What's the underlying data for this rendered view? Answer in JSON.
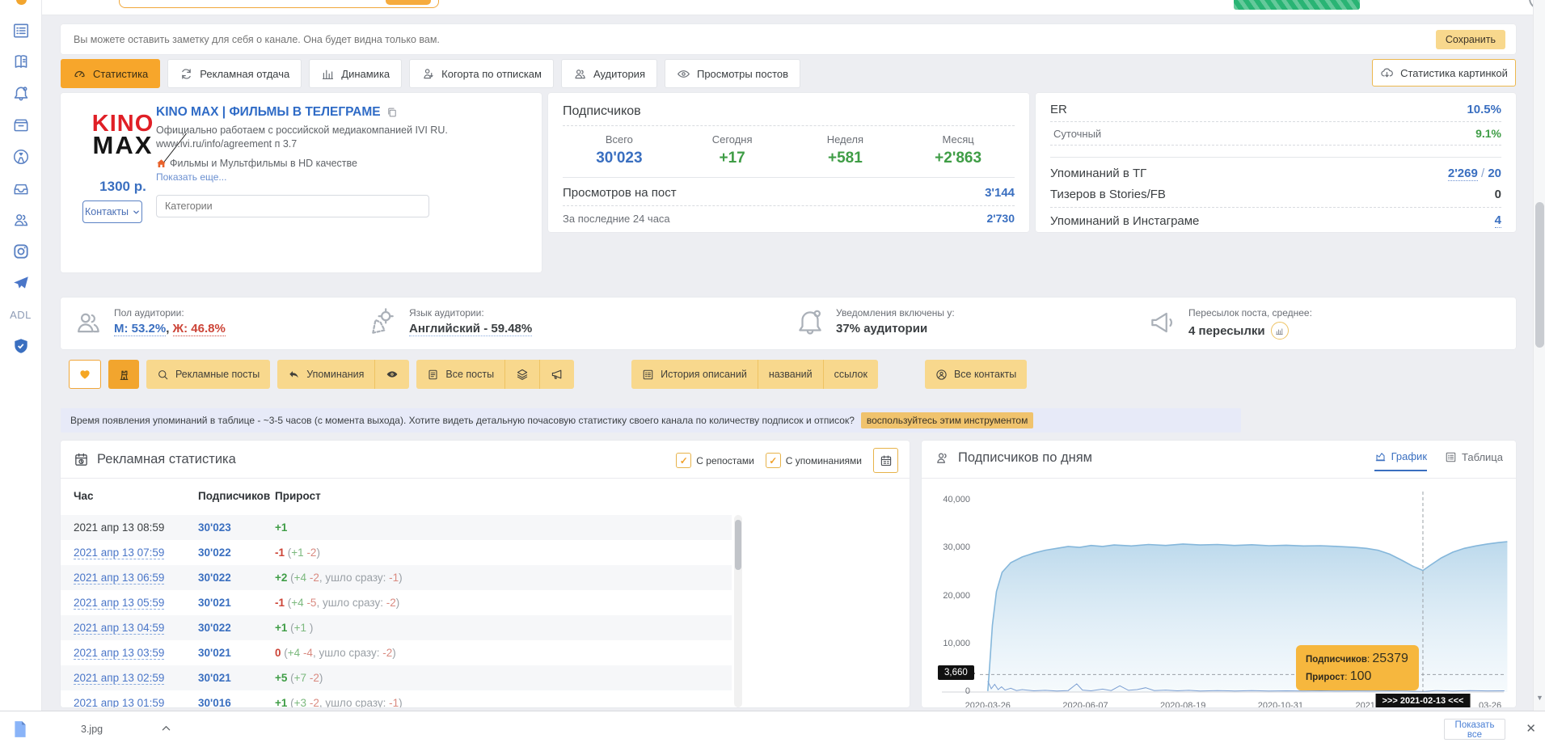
{
  "topbar": {
    "note_placeholder": "Вы можете оставить заметку для себя о канале. Она будет видна только вам.",
    "save_label": "Сохранить"
  },
  "sidebar": {
    "adl_label": "ADL"
  },
  "tabs": [
    {
      "label": "Статистика",
      "active": true
    },
    {
      "label": "Рекламная отдача",
      "active": false
    },
    {
      "label": "Динамика",
      "active": false
    },
    {
      "label": "Когорта по отпискам",
      "active": false
    },
    {
      "label": "Аудитория",
      "active": false
    },
    {
      "label": "Просмотры постов",
      "active": false
    }
  ],
  "stats_image_button": "Статистика картинкой",
  "channel": {
    "logo_line1": "KINO",
    "logo_line2": "MAX",
    "title": "KINO MAX | ФИЛЬМЫ В ТЕЛЕГРАМЕ",
    "desc1": "Официально работаем с российской медиакомпанией IVI RU.",
    "desc2": "www.ivi.ru/info/agreement п 3.7",
    "desc3": "Фильмы и Мультфильмы в HD качестве",
    "show_more": "Показать еще...",
    "price": "1300 р.",
    "contacts_label": "Контакты",
    "categories_placeholder": "Категории"
  },
  "subscribers": {
    "title": "Подписчиков",
    "cols": [
      {
        "label": "Всего",
        "value": "30'023",
        "color": "blue"
      },
      {
        "label": "Сегодня",
        "value": "+17",
        "color": "green"
      },
      {
        "label": "Неделя",
        "value": "+581",
        "color": "green"
      },
      {
        "label": "Месяц",
        "value": "+2'863",
        "color": "green"
      }
    ],
    "views_label": "Просмотров на пост",
    "views_value": "3'144",
    "views24_label": "За последние 24 часа",
    "views24_value": "2'730"
  },
  "er": {
    "er_label": "ER",
    "er_value": "10.5%",
    "daily_label": "Суточный",
    "daily_value": "9.1%",
    "tg_label": "Упоминаний в ТГ",
    "tg_value": "2'269",
    "tg_slash": " / ",
    "tg_value2": "20",
    "stories_label": "Тизеров в Stories/FB",
    "stories_value": "0",
    "insta_label": "Упоминаний в Инстаграме",
    "insta_value": "4"
  },
  "audience": {
    "gender_label": "Пол аудитории:",
    "gender_m": "М: 53.2%",
    "gender_sep": ", ",
    "gender_f": "Ж: 46.8%",
    "lang_label": "Язык аудитории:",
    "lang_value": "Английский - 59.48%",
    "notif_label": "Уведомления включены у:",
    "notif_value": "37% аудитории",
    "forward_label": "Пересылок поста, среднее:",
    "forward_value": "4 пересылки"
  },
  "filters": {
    "ad_posts": "Рекламные посты",
    "mentions": "Упоминания",
    "all_posts": "Все посты",
    "history_desc": "История описаний",
    "history_names": "названий",
    "history_links": "ссылок",
    "all_contacts": "Все контакты"
  },
  "banner": {
    "text": "Время появления упоминаний в таблице - ~3-5 часов (с момента выхода). Хотите видеть детальную почасовую статистику своего канала по количеству подписок и отписок?",
    "link": "воспользуйтесь этим инструментом"
  },
  "ad_stats": {
    "title": "Рекламная статистика",
    "checkbox_reposts": "С репостами",
    "checkbox_mentions": "С упоминаниями",
    "check_glyph": "✓",
    "headers": [
      "Час",
      "Подписчиков",
      "Прирост"
    ],
    "rows": [
      {
        "time": "2021 апр 13 08:59",
        "link": false,
        "subs": "30'023",
        "growth": [
          [
            "+1",
            "gb"
          ]
        ]
      },
      {
        "time": "2021 апр 13 07:59",
        "link": true,
        "subs": "30'022",
        "growth": [
          [
            "-1",
            "rb"
          ],
          [
            " (",
            "gy"
          ],
          [
            "+1",
            "g"
          ],
          [
            " ",
            "gy"
          ],
          [
            "-2",
            "r"
          ],
          [
            ")",
            "gy"
          ]
        ]
      },
      {
        "time": "2021 апр 13 06:59",
        "link": true,
        "subs": "30'022",
        "growth": [
          [
            "+2",
            "gb"
          ],
          [
            " (",
            "gy"
          ],
          [
            "+4",
            "g"
          ],
          [
            " ",
            "gy"
          ],
          [
            "-2",
            "r"
          ],
          [
            ", ушло сразу: ",
            "gy"
          ],
          [
            "-1",
            "r"
          ],
          [
            ")",
            "gy"
          ]
        ]
      },
      {
        "time": "2021 апр 13 05:59",
        "link": true,
        "subs": "30'021",
        "growth": [
          [
            "-1",
            "rb"
          ],
          [
            " (",
            "gy"
          ],
          [
            "+4",
            "g"
          ],
          [
            " ",
            "gy"
          ],
          [
            "-5",
            "r"
          ],
          [
            ", ушло сразу: ",
            "gy"
          ],
          [
            "-2",
            "r"
          ],
          [
            ")",
            "gy"
          ]
        ]
      },
      {
        "time": "2021 апр 13 04:59",
        "link": true,
        "subs": "30'022",
        "growth": [
          [
            "+1",
            "gb"
          ],
          [
            " (",
            "gy"
          ],
          [
            "+1",
            "g"
          ],
          [
            " )",
            "gy"
          ]
        ]
      },
      {
        "time": "2021 апр 13 03:59",
        "link": true,
        "subs": "30'021",
        "growth": [
          [
            "0",
            "rb"
          ],
          [
            " (",
            "gy"
          ],
          [
            "+4",
            "g"
          ],
          [
            " ",
            "gy"
          ],
          [
            "-4",
            "r"
          ],
          [
            ", ушло сразу: ",
            "gy"
          ],
          [
            "-2",
            "r"
          ],
          [
            ")",
            "gy"
          ]
        ]
      },
      {
        "time": "2021 апр 13 02:59",
        "link": true,
        "subs": "30'021",
        "growth": [
          [
            "+5",
            "gb"
          ],
          [
            " (",
            "gy"
          ],
          [
            "+7",
            "g"
          ],
          [
            " ",
            "gy"
          ],
          [
            "-2",
            "r"
          ],
          [
            ")",
            "gy"
          ]
        ]
      },
      {
        "time": "2021 апр 13 01:59",
        "link": true,
        "subs": "30'016",
        "growth": [
          [
            "+1",
            "gb"
          ],
          [
            " (",
            "gy"
          ],
          [
            "+3",
            "g"
          ],
          [
            " ",
            "gy"
          ],
          [
            "-2",
            "r"
          ],
          [
            ", ушло сразу: ",
            "gy"
          ],
          [
            "-1",
            "r"
          ],
          [
            ")",
            "gy"
          ]
        ]
      }
    ]
  },
  "chart": {
    "title": "Подписчиков по дням",
    "tab_graph": "График",
    "tab_table": "Таблица",
    "crosshair_value": "3,660",
    "tooltip_subs_label": "Подписчиков",
    "tooltip_subs_value": "25379",
    "tooltip_growth_label": "Прирост",
    "tooltip_growth_value": "100",
    "x_highlight": ">>> 2021-02-13 <<<"
  },
  "chart_data": {
    "type": "area",
    "title": "Подписчиков по дням",
    "ylim": [
      0,
      40000
    ],
    "y_ticks": [
      0,
      10000,
      20000,
      30000,
      40000
    ],
    "y_tick_labels": [
      "0",
      "10,000",
      "20,000",
      "30,000",
      "40,000"
    ],
    "x_ticks": [
      {
        "pct": 8,
        "label": "2020-03-26"
      },
      {
        "pct": 25,
        "label": "2020-06-07"
      },
      {
        "pct": 42,
        "label": "2020-08-19"
      },
      {
        "pct": 59,
        "label": "2020-10-31"
      },
      {
        "pct": 76,
        "label": "2021-01-12"
      },
      {
        "pct": 95.5,
        "label": "03-26"
      }
    ],
    "crosshair": {
      "y_value": 3660,
      "x_pct": 83.8,
      "x_label": "2021-02-13"
    },
    "tooltip": {
      "Подписчиков": 25379,
      "Прирост": 100
    },
    "legend": "off",
    "grid": "off",
    "series": [
      {
        "name": "Подписчиков",
        "points": [
          [
            8,
            200
          ],
          [
            8.3,
            5000
          ],
          [
            8.8,
            14000
          ],
          [
            9.5,
            21000
          ],
          [
            10.5,
            25000
          ],
          [
            12,
            27000
          ],
          [
            14,
            28200
          ],
          [
            16,
            29000
          ],
          [
            18,
            29600
          ],
          [
            20,
            30000
          ],
          [
            22,
            30400
          ],
          [
            24,
            30200
          ],
          [
            26,
            30600
          ],
          [
            28,
            30400
          ],
          [
            30,
            30700
          ],
          [
            33,
            30500
          ],
          [
            36,
            30800
          ],
          [
            39,
            30600
          ],
          [
            42,
            30900
          ],
          [
            45,
            30700
          ],
          [
            48,
            30800
          ],
          [
            51,
            30600
          ],
          [
            54,
            30750
          ],
          [
            57,
            30550
          ],
          [
            60,
            30650
          ],
          [
            63,
            30500
          ],
          [
            66,
            30550
          ],
          [
            69,
            30400
          ],
          [
            72,
            30200
          ],
          [
            74,
            30000
          ],
          [
            76,
            29600
          ],
          [
            78,
            28800
          ],
          [
            80,
            27600
          ],
          [
            82,
            26300
          ],
          [
            83.8,
            25379
          ],
          [
            85,
            26400
          ],
          [
            87,
            28000
          ],
          [
            89,
            29200
          ],
          [
            91,
            30000
          ],
          [
            93,
            30500
          ],
          [
            95,
            30900
          ],
          [
            97,
            31200
          ],
          [
            98.5,
            31400
          ]
        ]
      },
      {
        "name": "Прирост",
        "points": [
          [
            8,
            2300
          ],
          [
            8.6,
            700
          ],
          [
            9.2,
            1600
          ],
          [
            9.8,
            500
          ],
          [
            10.4,
            1100
          ],
          [
            11,
            400
          ],
          [
            12,
            800
          ],
          [
            13,
            300
          ],
          [
            14,
            500
          ],
          [
            16,
            250
          ],
          [
            18,
            350
          ],
          [
            20,
            200
          ],
          [
            22,
            300
          ],
          [
            23.5,
            1700
          ],
          [
            24.5,
            400
          ],
          [
            26,
            250
          ],
          [
            28,
            600
          ],
          [
            29.5,
            300
          ],
          [
            31,
            1300
          ],
          [
            32.5,
            350
          ],
          [
            34,
            500
          ],
          [
            35.5,
            900
          ],
          [
            37,
            300
          ],
          [
            39,
            400
          ],
          [
            41,
            250
          ],
          [
            43,
            350
          ],
          [
            45,
            200
          ],
          [
            48,
            300
          ],
          [
            51,
            220
          ],
          [
            54,
            280
          ],
          [
            57,
            200
          ],
          [
            60,
            260
          ],
          [
            63,
            210
          ],
          [
            66,
            250
          ],
          [
            69,
            200
          ],
          [
            72,
            240
          ],
          [
            75,
            200
          ],
          [
            78,
            260
          ],
          [
            81,
            210
          ],
          [
            83.8,
            100
          ],
          [
            86,
            300
          ],
          [
            89,
            220
          ],
          [
            92,
            280
          ],
          [
            95,
            230
          ],
          [
            98,
            260
          ]
        ]
      }
    ]
  },
  "downloads": {
    "file_name": "3.jpg",
    "show_all": "Показать все",
    "close_glyph": "✕"
  }
}
